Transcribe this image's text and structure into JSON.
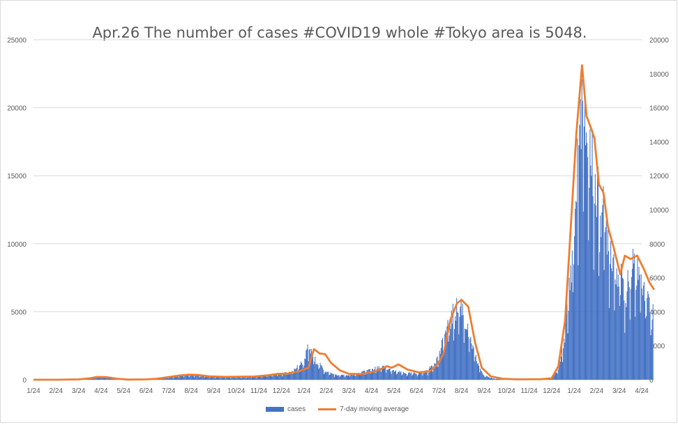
{
  "chart_data": {
    "type": "bar",
    "title": "Apr.26 The number of cases #COVID19 whole #Tokyo area is 5048.",
    "x_labels": [
      "1/24",
      "2/24",
      "3/24",
      "4/24",
      "5/24",
      "6/24",
      "7/24",
      "8/24",
      "9/24",
      "10/24",
      "11/24",
      "12/24",
      "1/24",
      "2/24",
      "3/24",
      "4/24",
      "5/24",
      "6/24",
      "7/24",
      "8/24",
      "9/24",
      "10/24",
      "11/24",
      "12/24",
      "1/24",
      "2/24",
      "3/24",
      "4/24"
    ],
    "y_left": {
      "ticks": [
        "0",
        "5000",
        "10000",
        "15000",
        "20000",
        "25000"
      ],
      "ylim": [
        0,
        25000
      ]
    },
    "y_right": {
      "ticks": [
        "0",
        "2000",
        "4000",
        "6000",
        "8000",
        "10000",
        "12000",
        "14000",
        "16000",
        "18000",
        "20000"
      ],
      "ylim": [
        0,
        20000
      ]
    },
    "grid": true,
    "legend_position": "bottom",
    "series": [
      {
        "name": "cases",
        "axis": "left",
        "chart_type": "bar",
        "color": "#4472c4",
        "monthly_points": [
          [
            0,
            0
          ],
          [
            1,
            0
          ],
          [
            2,
            30
          ],
          [
            2.5,
            120
          ],
          [
            3,
            250
          ],
          [
            3.5,
            150
          ],
          [
            4,
            60
          ],
          [
            4.5,
            20
          ],
          [
            5,
            30
          ],
          [
            5.5,
            60
          ],
          [
            6,
            150
          ],
          [
            6.5,
            300
          ],
          [
            7,
            380
          ],
          [
            7.5,
            270
          ],
          [
            8,
            220
          ],
          [
            8.5,
            200
          ],
          [
            9,
            190
          ],
          [
            9.5,
            200
          ],
          [
            10,
            240
          ],
          [
            10.5,
            350
          ],
          [
            11,
            420
          ],
          [
            11.5,
            650
          ],
          [
            12,
            1400
          ],
          [
            12.2,
            2450
          ],
          [
            12.5,
            1500
          ],
          [
            13,
            600
          ],
          [
            13.5,
            330
          ],
          [
            14,
            350
          ],
          [
            14.5,
            500
          ],
          [
            15,
            800
          ],
          [
            15.5,
            950
          ],
          [
            16,
            650
          ],
          [
            16.5,
            480
          ],
          [
            17,
            480
          ],
          [
            17.5,
            650
          ],
          [
            18,
            1800
          ],
          [
            18.3,
            3600
          ],
          [
            18.7,
            5200
          ],
          [
            19,
            5700
          ],
          [
            19.3,
            3500
          ],
          [
            19.7,
            1300
          ],
          [
            20,
            300
          ],
          [
            20.5,
            80
          ],
          [
            21,
            40
          ],
          [
            22,
            20
          ],
          [
            23,
            50
          ],
          [
            23.3,
            800
          ],
          [
            23.6,
            3500
          ],
          [
            24,
            11000
          ],
          [
            24.3,
            21000
          ],
          [
            24.5,
            19000
          ],
          [
            24.8,
            16500
          ],
          [
            25,
            14000
          ],
          [
            25.3,
            12500
          ],
          [
            25.7,
            9500
          ],
          [
            26,
            8000
          ],
          [
            26.3,
            6500
          ],
          [
            26.6,
            8500
          ],
          [
            27,
            8000
          ],
          [
            27.3,
            6000
          ],
          [
            27.5,
            5048
          ]
        ]
      },
      {
        "name": "7-day moving average",
        "axis": "right",
        "chart_type": "line",
        "color": "#ed7d31",
        "monthly_points": [
          [
            0,
            0
          ],
          [
            1,
            0
          ],
          [
            2,
            20
          ],
          [
            2.5,
            80
          ],
          [
            2.8,
            160
          ],
          [
            3.2,
            160
          ],
          [
            3.7,
            60
          ],
          [
            4.2,
            10
          ],
          [
            5,
            20
          ],
          [
            5.5,
            60
          ],
          [
            6,
            160
          ],
          [
            6.5,
            250
          ],
          [
            6.9,
            300
          ],
          [
            7.3,
            280
          ],
          [
            7.8,
            200
          ],
          [
            8.5,
            170
          ],
          [
            9.2,
            180
          ],
          [
            9.8,
            190
          ],
          [
            10.4,
            260
          ],
          [
            10.8,
            340
          ],
          [
            11.3,
            360
          ],
          [
            11.8,
            500
          ],
          [
            12.2,
            700
          ],
          [
            12.45,
            1800
          ],
          [
            12.7,
            1550
          ],
          [
            12.95,
            1500
          ],
          [
            13.2,
            1000
          ],
          [
            13.6,
            550
          ],
          [
            14,
            350
          ],
          [
            14.6,
            330
          ],
          [
            15.2,
            500
          ],
          [
            15.7,
            800
          ],
          [
            15.9,
            700
          ],
          [
            16.2,
            900
          ],
          [
            16.6,
            600
          ],
          [
            17.1,
            430
          ],
          [
            17.6,
            500
          ],
          [
            17.9,
            850
          ],
          [
            18.2,
            1500
          ],
          [
            18.5,
            3500
          ],
          [
            18.8,
            4500
          ],
          [
            19,
            4700
          ],
          [
            19.3,
            4300
          ],
          [
            19.6,
            2200
          ],
          [
            19.9,
            700
          ],
          [
            20.3,
            200
          ],
          [
            20.8,
            60
          ],
          [
            21.5,
            20
          ],
          [
            22.5,
            30
          ],
          [
            23,
            80
          ],
          [
            23.3,
            800
          ],
          [
            23.6,
            3500
          ],
          [
            23.85,
            9000
          ],
          [
            24.1,
            14500
          ],
          [
            24.35,
            18500
          ],
          [
            24.55,
            15500
          ],
          [
            24.75,
            14800
          ],
          [
            24.9,
            14200
          ],
          [
            25.1,
            11500
          ],
          [
            25.3,
            11000
          ],
          [
            25.5,
            9000
          ],
          [
            25.75,
            7800
          ],
          [
            26.05,
            6200
          ],
          [
            26.25,
            7300
          ],
          [
            26.5,
            7100
          ],
          [
            26.8,
            7300
          ],
          [
            27.1,
            6500
          ],
          [
            27.35,
            5700
          ],
          [
            27.55,
            5300
          ]
        ]
      }
    ]
  }
}
